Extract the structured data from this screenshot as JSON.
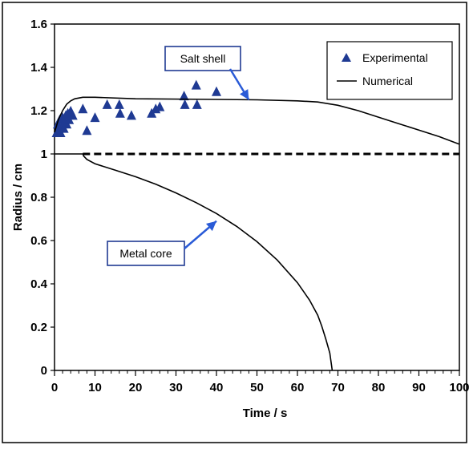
{
  "chart_data": {
    "type": "scatter",
    "title": "",
    "xlabel": "Time / s",
    "ylabel": "Radius / cm",
    "xlim": [
      0,
      100
    ],
    "ylim": [
      0,
      1.6
    ],
    "x_ticks": [
      "0",
      "10",
      "20",
      "30",
      "40",
      "50",
      "60",
      "70",
      "80",
      "90",
      "100"
    ],
    "y_ticks": [
      "0",
      "0.2",
      "0.4",
      "0.6",
      "0.8",
      "1",
      "1.2",
      "1.4",
      "1.6"
    ],
    "legend_position": "top-right",
    "grid": false,
    "legend": [
      {
        "label": "Experimental",
        "marker": "triangle"
      },
      {
        "label": "Numerical",
        "marker": "line"
      }
    ],
    "annotations": [
      {
        "text": "Salt shell",
        "points_to": [
          48,
          1.25
        ]
      },
      {
        "text": "Metal core",
        "points_to": [
          40,
          0.69
        ]
      }
    ],
    "series": [
      {
        "name": "Experimental",
        "kind": "scatter",
        "color": "#1f3a93",
        "points": [
          [
            0.5,
            1.1
          ],
          [
            0.8,
            1.14
          ],
          [
            1.0,
            1.12
          ],
          [
            1.3,
            1.16
          ],
          [
            1.5,
            1.1
          ],
          [
            1.8,
            1.13
          ],
          [
            2.0,
            1.17
          ],
          [
            2.3,
            1.12
          ],
          [
            2.5,
            1.15
          ],
          [
            2.8,
            1.18
          ],
          [
            3.0,
            1.14
          ],
          [
            3.3,
            1.19
          ],
          [
            3.6,
            1.16
          ],
          [
            4.0,
            1.2
          ],
          [
            4.5,
            1.18
          ],
          [
            7.0,
            1.21
          ],
          [
            8.0,
            1.11
          ],
          [
            10.0,
            1.17
          ],
          [
            13.0,
            1.23
          ],
          [
            16.0,
            1.23
          ],
          [
            16.2,
            1.19
          ],
          [
            19.0,
            1.18
          ],
          [
            24.0,
            1.19
          ],
          [
            25.0,
            1.21
          ],
          [
            26.0,
            1.22
          ],
          [
            32.0,
            1.27
          ],
          [
            32.2,
            1.23
          ],
          [
            35.0,
            1.32
          ],
          [
            35.2,
            1.23
          ],
          [
            40.0,
            1.29
          ]
        ]
      },
      {
        "name": "Numerical",
        "kind": "line",
        "color": "#000000",
        "points": [
          [
            0,
            1.1
          ],
          [
            1,
            1.16
          ],
          [
            2,
            1.2
          ],
          [
            3,
            1.23
          ],
          [
            4,
            1.245
          ],
          [
            5,
            1.255
          ],
          [
            7,
            1.262
          ],
          [
            10,
            1.262
          ],
          [
            20,
            1.255
          ],
          [
            40,
            1.252
          ],
          [
            50,
            1.25
          ],
          [
            60,
            1.245
          ],
          [
            65,
            1.24
          ],
          [
            70,
            1.225
          ],
          [
            75,
            1.2
          ],
          [
            80,
            1.17
          ],
          [
            85,
            1.14
          ],
          [
            90,
            1.11
          ],
          [
            95,
            1.08
          ],
          [
            100,
            1.045
          ]
        ]
      },
      {
        "name": "Numerical",
        "kind": "line",
        "color": "#000000",
        "points": [
          [
            0,
            1.0
          ],
          [
            7,
            1.0
          ],
          [
            7.2,
            0.99
          ],
          [
            8,
            0.975
          ],
          [
            10,
            0.955
          ],
          [
            15,
            0.925
          ],
          [
            20,
            0.895
          ],
          [
            25,
            0.86
          ],
          [
            30,
            0.82
          ],
          [
            35,
            0.775
          ],
          [
            40,
            0.725
          ],
          [
            45,
            0.665
          ],
          [
            50,
            0.595
          ],
          [
            55,
            0.51
          ],
          [
            60,
            0.405
          ],
          [
            63,
            0.325
          ],
          [
            65,
            0.255
          ],
          [
            66,
            0.205
          ],
          [
            67,
            0.145
          ],
          [
            68,
            0.08
          ],
          [
            68.6,
            0.0
          ]
        ]
      },
      {
        "name": "",
        "kind": "dashed",
        "color": "#000000",
        "points": [
          [
            7,
            1.0
          ],
          [
            100,
            1.0
          ]
        ]
      }
    ]
  }
}
